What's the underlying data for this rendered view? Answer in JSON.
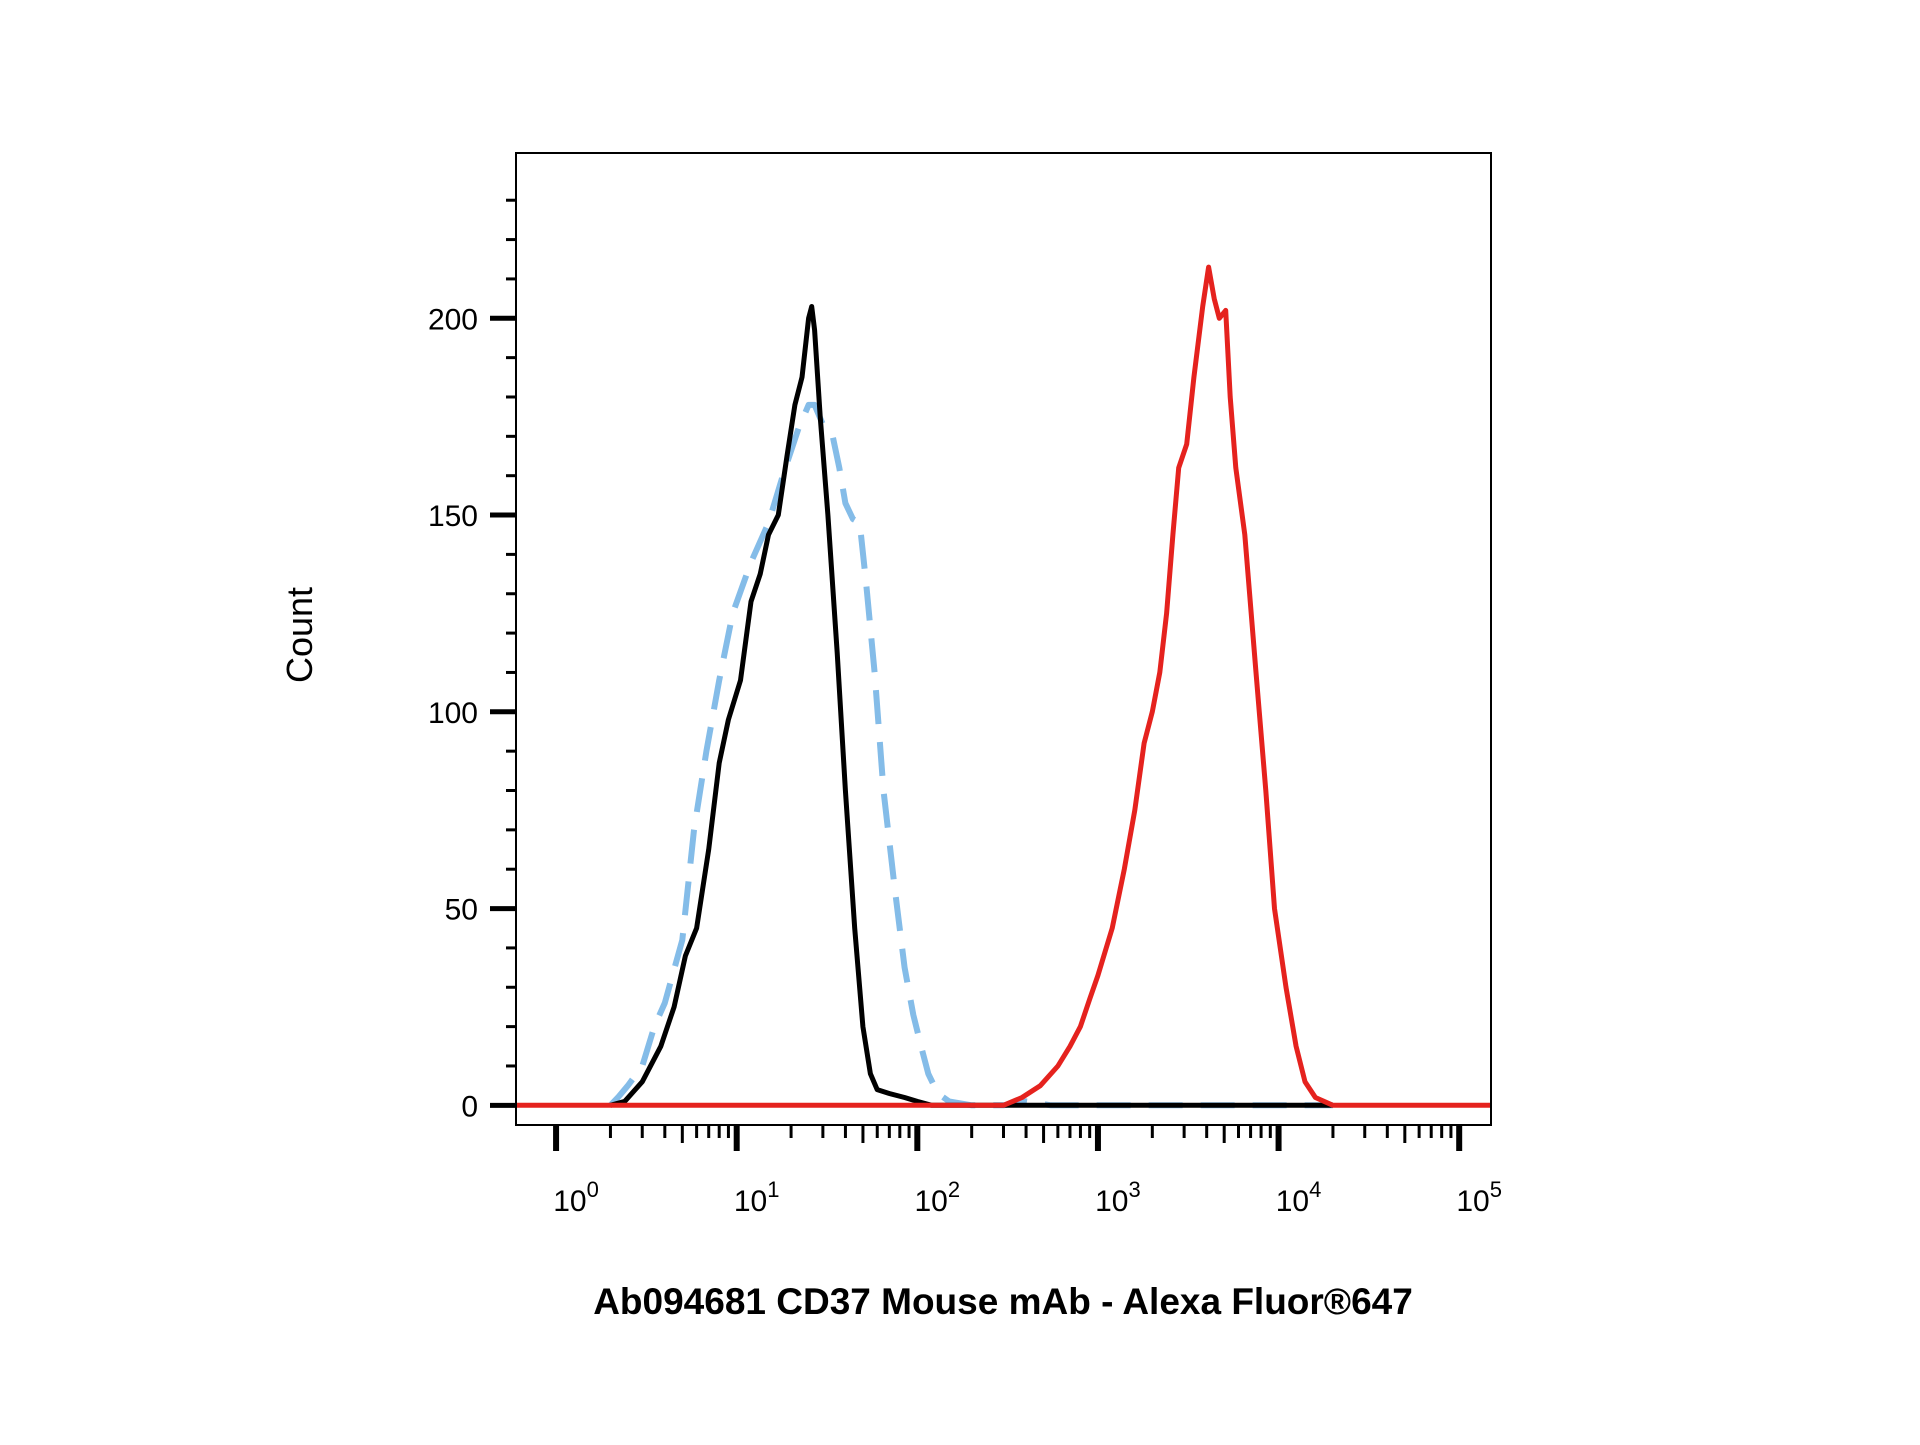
{
  "chart_data": {
    "type": "line",
    "title": "",
    "xlabel": "Ab094681 CD37 Mouse mAb - Alexa Fluor®647",
    "ylabel": "Count",
    "x_scale": "log",
    "xlim": [
      0.6,
      150000
    ],
    "ylim": [
      -5,
      242
    ],
    "y_ticks": [
      0,
      50,
      100,
      150,
      200
    ],
    "y_tick_labels": [
      "0",
      "50",
      "100",
      "150",
      "200"
    ],
    "x_ticks": [
      1,
      10,
      100,
      1000,
      10000,
      100000
    ],
    "x_tick_labels": [
      {
        "base": "10",
        "exp": "0"
      },
      {
        "base": "10",
        "exp": "1"
      },
      {
        "base": "10",
        "exp": "2"
      },
      {
        "base": "10",
        "exp": "3"
      },
      {
        "base": "10",
        "exp": "4"
      },
      {
        "base": "10",
        "exp": "5"
      }
    ],
    "grid": false,
    "legend": "none",
    "series": [
      {
        "color": "#84bce8",
        "style": "dashed",
        "points": [
          [
            2,
            0
          ],
          [
            2.2,
            2
          ],
          [
            2.5,
            5
          ],
          [
            3,
            10
          ],
          [
            3.5,
            20
          ],
          [
            4,
            26
          ],
          [
            5,
            42
          ],
          [
            5.8,
            70
          ],
          [
            6.8,
            90
          ],
          [
            8,
            108
          ],
          [
            9.5,
            125
          ],
          [
            12,
            138
          ],
          [
            15,
            148
          ],
          [
            18,
            160
          ],
          [
            22,
            172
          ],
          [
            25,
            178
          ],
          [
            27,
            178
          ],
          [
            30,
            173
          ],
          [
            34,
            170
          ],
          [
            37,
            162
          ],
          [
            40,
            153
          ],
          [
            44,
            149
          ],
          [
            48,
            148
          ],
          [
            52,
            133
          ],
          [
            58,
            110
          ],
          [
            65,
            80
          ],
          [
            75,
            55
          ],
          [
            85,
            35
          ],
          [
            95,
            23
          ],
          [
            105,
            15
          ],
          [
            115,
            8
          ],
          [
            130,
            3
          ],
          [
            150,
            1
          ],
          [
            200,
            0
          ],
          [
            300,
            0
          ],
          [
            400,
            1
          ],
          [
            550,
            0
          ],
          [
            1000,
            0
          ],
          [
            20000,
            0
          ]
        ]
      },
      {
        "color": "#000000",
        "style": "solid",
        "points": [
          [
            2,
            0
          ],
          [
            2.4,
            1
          ],
          [
            3,
            6
          ],
          [
            3.8,
            15
          ],
          [
            4.5,
            25
          ],
          [
            5.2,
            38
          ],
          [
            6,
            45
          ],
          [
            7,
            65
          ],
          [
            8,
            87
          ],
          [
            9,
            98
          ],
          [
            10.5,
            108
          ],
          [
            12,
            128
          ],
          [
            13.5,
            135
          ],
          [
            15,
            145
          ],
          [
            17,
            150
          ],
          [
            19,
            165
          ],
          [
            21,
            178
          ],
          [
            23,
            185
          ],
          [
            25,
            200
          ],
          [
            26,
            203
          ],
          [
            27,
            197
          ],
          [
            29,
            175
          ],
          [
            32,
            150
          ],
          [
            36,
            115
          ],
          [
            40,
            80
          ],
          [
            45,
            45
          ],
          [
            50,
            20
          ],
          [
            55,
            8
          ],
          [
            60,
            4
          ],
          [
            70,
            3
          ],
          [
            85,
            2
          ],
          [
            100,
            1
          ],
          [
            120,
            0
          ],
          [
            20000,
            0
          ]
        ]
      },
      {
        "color": "#e5221e",
        "style": "solid",
        "points": [
          [
            0.6,
            0
          ],
          [
            250,
            0
          ],
          [
            300,
            0
          ],
          [
            380,
            2
          ],
          [
            480,
            5
          ],
          [
            600,
            10
          ],
          [
            700,
            15
          ],
          [
            800,
            20
          ],
          [
            900,
            27
          ],
          [
            1000,
            33
          ],
          [
            1200,
            45
          ],
          [
            1400,
            60
          ],
          [
            1600,
            75
          ],
          [
            1800,
            92
          ],
          [
            2000,
            100
          ],
          [
            2200,
            110
          ],
          [
            2400,
            125
          ],
          [
            2600,
            145
          ],
          [
            2800,
            162
          ],
          [
            3100,
            168
          ],
          [
            3400,
            185
          ],
          [
            3800,
            203
          ],
          [
            4100,
            213
          ],
          [
            4400,
            205
          ],
          [
            4700,
            200
          ],
          [
            5100,
            202
          ],
          [
            5400,
            180
          ],
          [
            5800,
            162
          ],
          [
            6500,
            145
          ],
          [
            7500,
            110
          ],
          [
            8500,
            80
          ],
          [
            9500,
            50
          ],
          [
            11000,
            30
          ],
          [
            12500,
            15
          ],
          [
            14000,
            6
          ],
          [
            16000,
            2
          ],
          [
            20000,
            0
          ],
          [
            150000,
            0
          ]
        ]
      }
    ]
  }
}
